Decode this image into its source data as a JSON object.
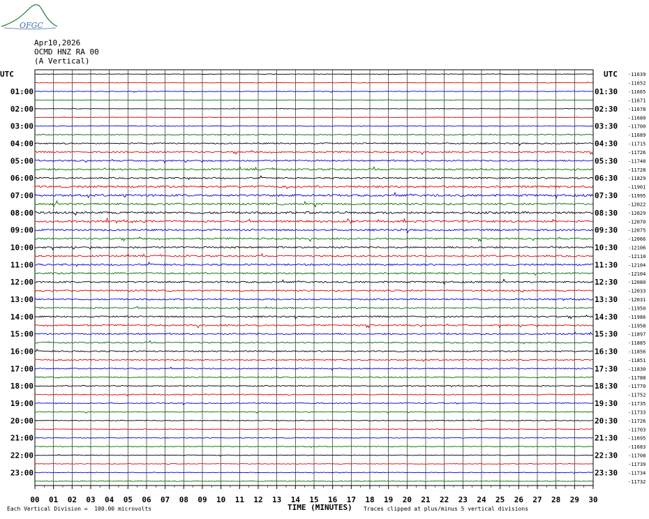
{
  "logo": {
    "text": "OFGC"
  },
  "header": {
    "date": "Apr10,2026",
    "station": "OCMD HNZ RA 00",
    "component": "(A Vertical)"
  },
  "chart_data": {
    "type": "line",
    "title": "",
    "xlabel": "TIME (MINUTES)",
    "xlim": [
      0,
      30
    ],
    "x_ticks": [
      "00",
      "01",
      "02",
      "03",
      "04",
      "05",
      "06",
      "07",
      "08",
      "09",
      "10",
      "11",
      "12",
      "13",
      "14",
      "15",
      "16",
      "17",
      "18",
      "19",
      "20",
      "21",
      "22",
      "23",
      "24",
      "25",
      "26",
      "27",
      "28",
      "29",
      "30"
    ],
    "left_axis_title": "UTC",
    "right_axis_title": "UTC",
    "left_hour_labels": [
      "01:00",
      "02:00",
      "03:00",
      "04:00",
      "05:00",
      "06:00",
      "07:00",
      "08:00",
      "09:00",
      "10:00",
      "11:00",
      "12:00",
      "13:00",
      "14:00",
      "15:00",
      "16:00",
      "17:00",
      "18:00",
      "19:00",
      "20:00",
      "21:00",
      "22:00",
      "23:00"
    ],
    "right_hour_labels": [
      "01:30",
      "02:30",
      "03:30",
      "04:30",
      "05:30",
      "06:30",
      "07:30",
      "08:30",
      "09:30",
      "10:30",
      "11:30",
      "12:30",
      "13:30",
      "14:30",
      "15:30",
      "16:30",
      "17:30",
      "18:30",
      "19:30",
      "20:30",
      "21:30",
      "22:30",
      "23:30"
    ],
    "trace_colors": [
      "#000000",
      "#e00000",
      "#0000e0",
      "#007000"
    ],
    "trace_offsets": [
      -11639,
      -11652,
      -11665,
      -11671,
      -11678,
      -11680,
      -11700,
      -11689,
      -11715,
      -11726,
      -11748,
      -11728,
      -11829,
      -11901,
      -11995,
      -12022,
      -12029,
      -12070,
      -12075,
      -12066,
      -12106,
      -12110,
      -12104,
      -12104,
      -12080,
      -12033,
      -12031,
      -11950,
      -11986,
      -11958,
      -11897,
      -11885,
      -11856,
      -11851,
      -11830,
      -11788,
      -11770,
      -11752,
      -11735,
      -11733,
      -11726,
      -11703,
      -11695,
      -11683,
      -11708,
      -11739,
      -11734,
      -11732
    ],
    "trace_activity": [
      0.3,
      0.3,
      0.4,
      0.3,
      0.3,
      0.3,
      0.4,
      0.6,
      0.8,
      0.9,
      0.9,
      1.1,
      0.9,
      1.2,
      1.3,
      1.2,
      1.3,
      1.2,
      1.1,
      1.0,
      1.0,
      1.0,
      1.0,
      1.0,
      1.0,
      0.9,
      0.9,
      0.9,
      0.9,
      0.9,
      0.9,
      0.8,
      0.8,
      0.8,
      0.7,
      0.7,
      0.7,
      0.6,
      0.6,
      0.5,
      0.5,
      0.5,
      0.5,
      0.5,
      0.4,
      0.4,
      0.4,
      0.4
    ],
    "grid": true
  },
  "footer": {
    "scale_note": "Each Vertical Division =  100.00 microvolts",
    "clip_note": "Traces clipped at plus/minus 5 vertical divisions"
  }
}
